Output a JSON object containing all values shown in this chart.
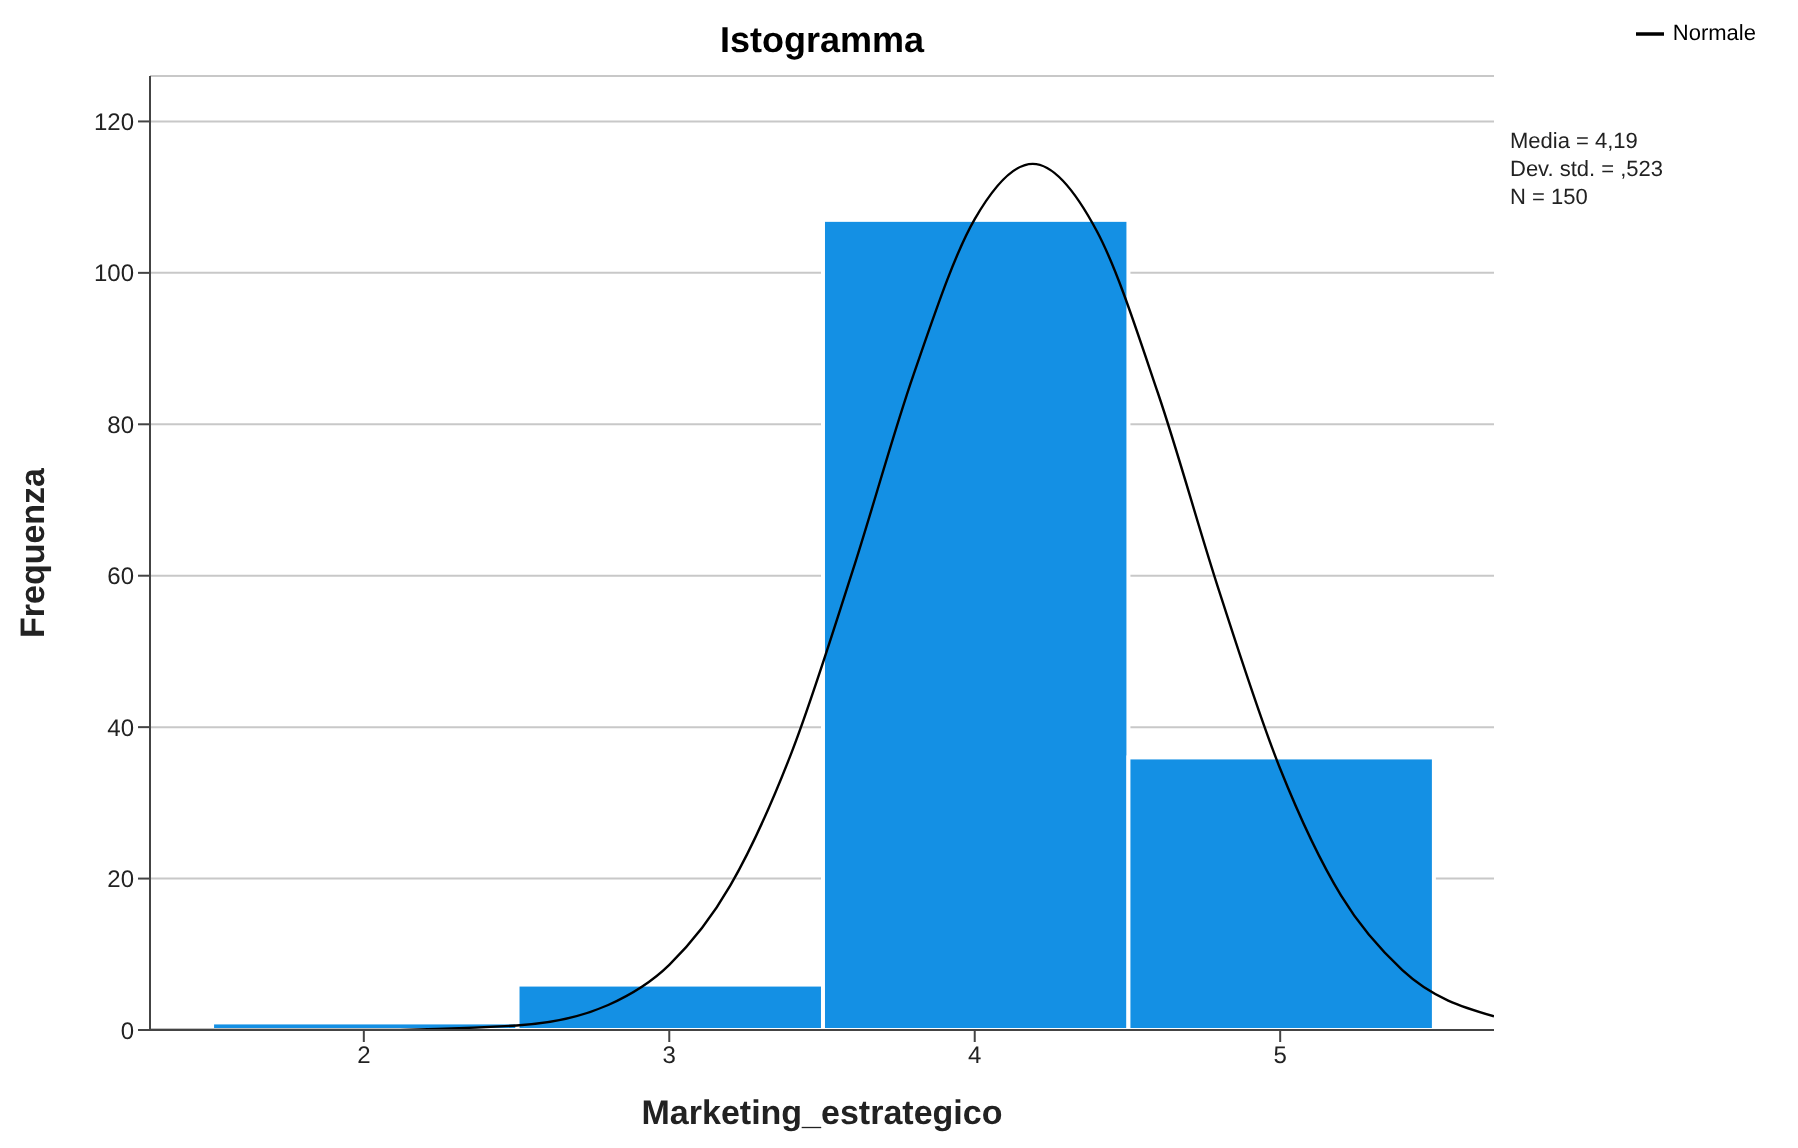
{
  "chart_data": {
    "type": "histogram",
    "title": "Istogramma",
    "xlabel": "Marketing_estrategico",
    "ylabel": "Frequenza",
    "bins": [
      1.5,
      2.5,
      3.5,
      4.5,
      5.5
    ],
    "values": [
      1,
      6,
      107,
      36
    ],
    "color": "#1490e4",
    "xlim": [
      1.3,
      5.7
    ],
    "xticks": [
      2,
      3,
      4,
      5
    ],
    "ylim": [
      0,
      126
    ],
    "yticks": [
      0,
      20,
      40,
      60,
      80,
      100,
      120
    ],
    "grid": "y",
    "legend": "top right",
    "annotations": [
      "Media = 4,19",
      "Dev. std. = ,523",
      "N = 150"
    ],
    "series": [
      {
        "name": "Normale",
        "type": "line",
        "color": "#000000",
        "x": [
          1.3,
          2.0,
          2.5,
          2.8,
          3.0,
          3.2,
          3.4,
          3.6,
          3.8,
          4.0,
          4.19,
          4.4,
          4.6,
          4.8,
          5.0,
          5.2,
          5.4,
          5.7
        ],
        "values": [
          0,
          0,
          0.6,
          3.3,
          8.6,
          19.1,
          36.6,
          60.6,
          86.6,
          107.1,
          114.4,
          105.5,
          84.1,
          58.0,
          34.5,
          17.7,
          7.9,
          1.8
        ]
      }
    ]
  }
}
